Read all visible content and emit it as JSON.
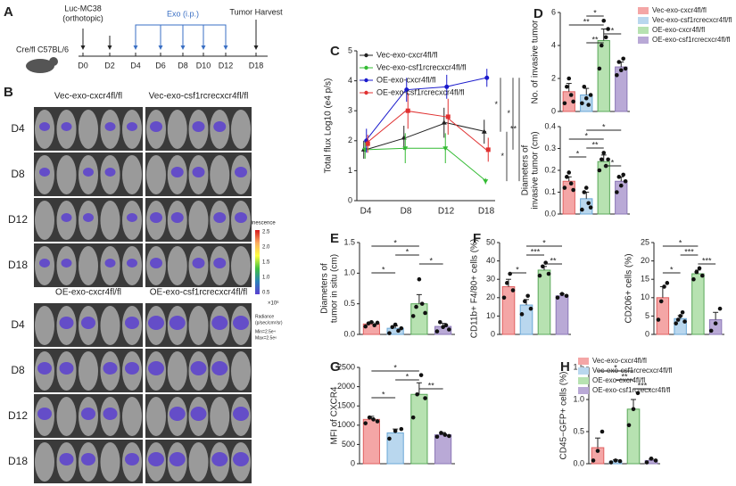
{
  "letters": [
    "A",
    "B",
    "C",
    "D",
    "E",
    "F",
    "G",
    "H"
  ],
  "timeline": {
    "model": "Cre/fl C57BL/6",
    "injection": [
      "Luc-MC38",
      "(orthotopic)"
    ],
    "treatment": "Exo (i.p.)",
    "harvest": "Tumor Harvest",
    "days": [
      "D0",
      "D2",
      "D4",
      "D6",
      "D8",
      "D10",
      "D12",
      "D18"
    ]
  },
  "imaging": {
    "groups": [
      "Vec-exo-cxcr4fl/fl",
      "Vec-exo-csf1rcrecxcr4fl/fl",
      "OE-exo-cxcr4fl/fl",
      "OE-exo-csf1rcrecxcr4fl/fl"
    ],
    "days": [
      "D4",
      "D8",
      "D12",
      "D18"
    ],
    "colorbar": {
      "title": "Luminescence",
      "ticks": [
        "2.5",
        "2.0",
        "1.5",
        "1.0",
        "0.5"
      ],
      "unit": "×10⁶",
      "radiance": [
        "Radiance",
        "(p/sec/cm²/sr)"
      ],
      "range": [
        "Min=2.5e⁴",
        "Max=2.5e⁶"
      ]
    }
  },
  "legends": [
    {
      "entries": [
        {
          "name": "Vec-exo-cxcr4fl/fl",
          "color": "#f4a6a6"
        },
        {
          "name": "Vec-exo-csf1rcrecxcr4fl/fl",
          "color": "#b9d7ee"
        },
        {
          "name": "OE-exo-cxcr4fl/fl",
          "color": "#b7e2b1"
        },
        {
          "name": "OE-exo-csf1rcrecxcr4fl/fl",
          "color": "#b9a9d6"
        }
      ]
    },
    {
      "entries": [
        {
          "name": "Vec-exo-cxcr4fl/fl",
          "color": "#f4a6a6"
        },
        {
          "name": "Vec-exo-csf1rcrecxcr4fl/fl",
          "color": "#b9d7ee"
        },
        {
          "name": "OE-exo-cxcr4fl/fl",
          "color": "#b7e2b1"
        },
        {
          "name": "OE-exo-csf1rcrecxcr4fl/fl",
          "color": "#b9a9d6"
        }
      ]
    }
  ],
  "chart_data": [
    {
      "type": "line",
      "ylabel": "Total flux Log10 (e4 p/s)",
      "categories": [
        "D4",
        "D8",
        "D12",
        "D18"
      ],
      "ylim": [
        0,
        5
      ],
      "yticks": [
        0,
        1,
        2,
        3,
        4,
        5
      ],
      "series": [
        {
          "name": "Vec-exo-cxcr4fl/fl",
          "color": "#222222",
          "marker": "triangle",
          "values": [
            1.7,
            2.1,
            2.6,
            2.3
          ],
          "errors": [
            0.3,
            0.4,
            0.5,
            0.4
          ]
        },
        {
          "name": "Vec-exo-csf1rcrecxcr4fl/fl",
          "color": "#33bb33",
          "marker": "down",
          "values": [
            1.7,
            1.75,
            1.75,
            0.65
          ],
          "errors": [
            0.3,
            0.5,
            0.5,
            0.1
          ]
        },
        {
          "name": "OE-exo-cxcr4fl/fl",
          "color": "#1a1acc",
          "marker": "circle",
          "values": [
            2.0,
            3.7,
            3.8,
            4.1
          ],
          "errors": [
            0.4,
            0.4,
            0.4,
            0.3
          ]
        },
        {
          "name": "OE-exo-csf1rcrecxcr4fl/fl",
          "color": "#e03030",
          "marker": "square",
          "values": [
            1.9,
            3.0,
            2.8,
            1.7
          ],
          "errors": [
            0.3,
            0.6,
            0.6,
            0.4
          ]
        }
      ],
      "annotations": [
        {
          "pair": [
            2,
            0
          ],
          "text": "*"
        },
        {
          "pair": [
            0,
            1
          ],
          "text": "*"
        },
        {
          "pair": [
            2,
            3
          ],
          "text": "*"
        },
        {
          "pair": [
            2,
            1
          ],
          "text": "**"
        }
      ]
    },
    {
      "type": "bar",
      "ylabel": [
        "No. of invasive tumor"
      ],
      "ylim": [
        0,
        6
      ],
      "yticks": [
        0,
        2,
        4,
        6
      ],
      "series": [
        {
          "color": "#f4a6a6",
          "edge": "#e06060",
          "values": [
            1.2
          ],
          "errors": [
            0.5
          ],
          "points": [
            0.5,
            1.5,
            2.0,
            1.0,
            0.6
          ]
        },
        {
          "color": "#b9d7ee",
          "edge": "#6aa7d6",
          "values": [
            1.0
          ],
          "errors": [
            0.4
          ],
          "points": [
            0.5,
            1.5,
            0.8,
            0.4,
            1.0
          ]
        },
        {
          "color": "#b7e2b1",
          "edge": "#5aa85a",
          "values": [
            4.3
          ],
          "errors": [
            0.7
          ],
          "points": [
            2.6,
            4.0,
            5.5,
            4.5,
            5.0
          ]
        },
        {
          "color": "#b9a9d6",
          "edge": "#8b77b6",
          "values": [
            2.7
          ],
          "errors": [
            0.3
          ],
          "points": [
            2.2,
            3.0,
            2.5,
            3.2,
            2.6
          ]
        }
      ],
      "annotations": [
        {
          "pair": [
            1,
            2
          ],
          "text": "*"
        },
        {
          "pair": [
            0,
            2
          ],
          "text": "**"
        },
        {
          "pair": [
            2,
            3
          ],
          "text": "*"
        },
        {
          "pair": [
            1,
            2
          ],
          "text": "**"
        }
      ]
    },
    {
      "type": "bar",
      "ylabel": [
        "Diameters of",
        "invasive tumor (cm)"
      ],
      "ylim": [
        0,
        0.4
      ],
      "yticks": [
        {
          "value": 0,
          "label": "0.0"
        },
        0.1,
        0.2,
        0.3,
        0.4
      ],
      "series": [
        {
          "color": "#f4a6a6",
          "edge": "#e06060",
          "values": [
            0.15
          ],
          "errors": [
            0.02
          ],
          "points": [
            0.12,
            0.17,
            0.19,
            0.14,
            0.11
          ]
        },
        {
          "color": "#b9d7ee",
          "edge": "#6aa7d6",
          "values": [
            0.07
          ],
          "errors": [
            0.03
          ],
          "points": [
            0.02,
            0.1,
            0.12,
            0.05,
            0.03
          ]
        },
        {
          "color": "#b7e2b1",
          "edge": "#5aa85a",
          "values": [
            0.24
          ],
          "errors": [
            0.03
          ],
          "points": [
            0.2,
            0.25,
            0.28,
            0.22,
            0.25
          ]
        },
        {
          "color": "#b9a9d6",
          "edge": "#8b77b6",
          "values": [
            0.15
          ],
          "errors": [
            0.02
          ],
          "points": [
            0.1,
            0.17,
            0.13,
            0.18,
            0.15
          ]
        }
      ],
      "annotations": [
        {
          "pair": [
            1,
            3
          ],
          "text": "*"
        },
        {
          "pair": [
            0,
            2
          ],
          "text": "*"
        },
        {
          "pair": [
            1,
            2
          ],
          "text": "**"
        },
        {
          "pair": [
            0,
            1
          ],
          "text": "*"
        },
        {
          "pair": [
            2,
            3
          ],
          "text": "*"
        }
      ]
    },
    {
      "type": "bar",
      "ylabel": [
        "Diameters of",
        "tumor in situ (cm)"
      ],
      "ylim": [
        0,
        1.5
      ],
      "yticks": [
        {
          "value": 0,
          "label": "0.0"
        },
        0.5,
        {
          "value": 1,
          "label": "1.0"
        },
        1.5
      ],
      "series": [
        {
          "color": "#f4a6a6",
          "edge": "#e06060",
          "values": [
            0.17
          ],
          "errors": [
            0.03
          ],
          "points": [
            0.13,
            0.18,
            0.2,
            0.15,
            0.19
          ]
        },
        {
          "color": "#b9d7ee",
          "edge": "#6aa7d6",
          "values": [
            0.1
          ],
          "errors": [
            0.04
          ],
          "points": [
            0.02,
            0.12,
            0.16,
            0.06,
            0.1
          ]
        },
        {
          "color": "#b7e2b1",
          "edge": "#5aa85a",
          "values": [
            0.5
          ],
          "errors": [
            0.15
          ],
          "points": [
            0.3,
            0.45,
            0.9,
            0.5,
            0.35
          ]
        },
        {
          "color": "#b9a9d6",
          "edge": "#8b77b6",
          "values": [
            0.13
          ],
          "errors": [
            0.05
          ],
          "points": [
            0.05,
            0.2,
            0.12,
            0.15,
            0.08
          ]
        }
      ],
      "annotations": [
        {
          "pair": [
            0,
            2
          ],
          "text": "*"
        },
        {
          "pair": [
            1,
            2
          ],
          "text": "*"
        },
        {
          "pair": [
            2,
            3
          ],
          "text": "*"
        },
        {
          "pair": [
            0,
            1
          ],
          "text": "*"
        }
      ]
    },
    {
      "type": "bar",
      "ylabel": [
        "CD11b+ F4/80+ cells (%)"
      ],
      "ylim": [
        0,
        50
      ],
      "yticks": [
        0,
        10,
        20,
        30,
        40,
        50
      ],
      "series": [
        {
          "color": "#f4a6a6",
          "edge": "#e06060",
          "values": [
            26
          ],
          "errors": [
            4
          ],
          "points": [
            20,
            28,
            33,
            24
          ]
        },
        {
          "color": "#b9d7ee",
          "edge": "#6aa7d6",
          "values": [
            16
          ],
          "errors": [
            3
          ],
          "points": [
            11,
            18,
            21,
            14
          ]
        },
        {
          "color": "#b7e2b1",
          "edge": "#5aa85a",
          "values": [
            35
          ],
          "errors": [
            2
          ],
          "points": [
            32,
            37,
            39,
            33
          ]
        },
        {
          "color": "#b9a9d6",
          "edge": "#8b77b6",
          "values": [
            21
          ],
          "errors": [
            1
          ],
          "points": [
            20,
            22,
            21
          ]
        }
      ],
      "annotations": [
        {
          "pair": [
            1,
            3
          ],
          "text": "*"
        },
        {
          "pair": [
            1,
            2
          ],
          "text": "***"
        },
        {
          "pair": [
            2,
            3
          ],
          "text": "**"
        },
        {
          "pair": [
            0,
            1
          ],
          "text": "*"
        }
      ]
    },
    {
      "type": "bar",
      "ylabel": [
        "CD206+ cells (%)"
      ],
      "ylim": [
        0,
        25
      ],
      "yticks": [
        0,
        5,
        10,
        15,
        20,
        25
      ],
      "series": [
        {
          "color": "#f4a6a6",
          "edge": "#e06060",
          "values": [
            10
          ],
          "errors": [
            3
          ],
          "points": [
            4,
            9,
            13,
            14
          ]
        },
        {
          "color": "#b9d7ee",
          "edge": "#6aa7d6",
          "values": [
            4.3
          ],
          "errors": [
            0.8
          ],
          "points": [
            3,
            4,
            5,
            6,
            3.5
          ]
        },
        {
          "color": "#b7e2b1",
          "edge": "#5aa85a",
          "values": [
            16.5
          ],
          "errors": [
            1
          ],
          "points": [
            15,
            17,
            18,
            16
          ]
        },
        {
          "color": "#b9a9d6",
          "edge": "#8b77b6",
          "values": [
            4
          ],
          "errors": [
            2
          ],
          "points": [
            1,
            3,
            7
          ]
        }
      ],
      "annotations": [
        {
          "pair": [
            0,
            2
          ],
          "text": "*"
        },
        {
          "pair": [
            1,
            2
          ],
          "text": "***"
        },
        {
          "pair": [
            2,
            3
          ],
          "text": "***"
        },
        {
          "pair": [
            0,
            1
          ],
          "text": "*"
        }
      ]
    },
    {
      "type": "bar",
      "ylabel": [
        "MFI of CXCR4"
      ],
      "ylim": [
        0,
        2500
      ],
      "yticks": [
        0,
        500,
        1000,
        1500,
        2000,
        2500
      ],
      "series": [
        {
          "color": "#f4a6a6",
          "edge": "#e06060",
          "values": [
            1150
          ],
          "errors": [
            80
          ],
          "points": [
            1050,
            1200,
            1150,
            1100
          ]
        },
        {
          "color": "#b9d7ee",
          "edge": "#6aa7d6",
          "values": [
            800
          ],
          "errors": [
            100
          ],
          "points": [
            650,
            850,
            900
          ]
        },
        {
          "color": "#b7e2b1",
          "edge": "#5aa85a",
          "values": [
            1800
          ],
          "errors": [
            300
          ],
          "points": [
            1200,
            1800,
            2300,
            1700
          ]
        },
        {
          "color": "#b9a9d6",
          "edge": "#8b77b6",
          "values": [
            750
          ],
          "errors": [
            60
          ],
          "points": [
            700,
            800,
            750,
            720
          ]
        }
      ],
      "annotations": [
        {
          "pair": [
            0,
            2
          ],
          "text": "*"
        },
        {
          "pair": [
            1,
            2
          ],
          "text": "*"
        },
        {
          "pair": [
            2,
            3
          ],
          "text": "**"
        },
        {
          "pair": [
            0,
            1
          ],
          "text": "*"
        }
      ]
    },
    {
      "type": "bar",
      "ylabel": [
        "CD45−GFP+ cells (%)"
      ],
      "ylim": [
        0,
        1.5
      ],
      "yticks": [
        {
          "value": 0,
          "label": "0.0"
        },
        0.5,
        {
          "value": 1,
          "label": "1.0"
        },
        1.5
      ],
      "series": [
        {
          "color": "#f4a6a6",
          "edge": "#e06060",
          "values": [
            0.25
          ],
          "errors": [
            0.15
          ],
          "points": [
            0.05,
            0.2,
            0.5
          ]
        },
        {
          "color": "#b9d7ee",
          "edge": "#6aa7d6",
          "values": [
            0.04
          ],
          "errors": [
            0.02
          ],
          "points": [
            0.02,
            0.05,
            0.04
          ]
        },
        {
          "color": "#b7e2b1",
          "edge": "#5aa85a",
          "values": [
            0.85
          ],
          "errors": [
            0.15
          ],
          "points": [
            0.6,
            0.85,
            1.1
          ]
        },
        {
          "color": "#b9a9d6",
          "edge": "#8b77b6",
          "values": [
            0.05
          ],
          "errors": [
            0.02
          ],
          "points": [
            0.02,
            0.08,
            0.05
          ]
        }
      ],
      "annotations": [
        {
          "pair": [
            0,
            2
          ],
          "text": "*"
        },
        {
          "pair": [
            1,
            2
          ],
          "text": "**"
        },
        {
          "pair": [
            2,
            3
          ],
          "text": "***"
        }
      ]
    }
  ]
}
